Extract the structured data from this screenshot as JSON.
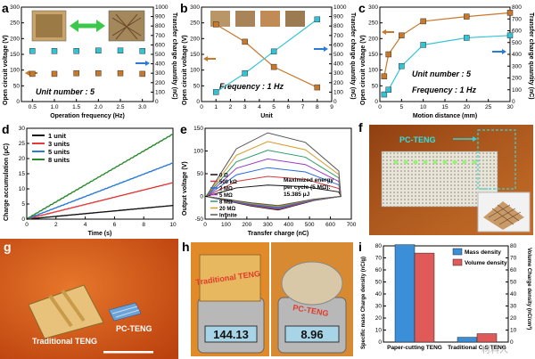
{
  "chart_data": [
    {
      "panel": "a",
      "type": "scatter",
      "xlabel": "Operation frequency (Hz)",
      "ylabel": "Open circuit voltage (V)",
      "y2label": "Transfer charge quantity (nC)",
      "xlim": [
        0.25,
        3.25
      ],
      "ylim": [
        0,
        300
      ],
      "y2lim": [
        0,
        1000
      ],
      "xticks": [
        "0.5",
        "1.0",
        "1.5",
        "2.0",
        "2.5",
        "3.0"
      ],
      "yticks": [
        "0",
        "50",
        "100",
        "150",
        "200",
        "250",
        "300"
      ],
      "y2ticks": [
        "0",
        "100",
        "200",
        "300",
        "400",
        "500",
        "600",
        "700",
        "800",
        "900",
        "1000"
      ],
      "annotation": "Unit number : 5",
      "series": [
        {
          "axis": "left",
          "color": "#c8782a",
          "x": [
            0.5,
            1.0,
            1.5,
            2.0,
            2.5,
            3.0
          ],
          "y": [
            88,
            88,
            90,
            90,
            90,
            88
          ]
        },
        {
          "axis": "right",
          "color": "#33c3d6",
          "x": [
            0.5,
            1.0,
            1.5,
            2.0,
            2.5,
            3.0
          ],
          "y": [
            535,
            535,
            535,
            540,
            540,
            535
          ]
        }
      ]
    },
    {
      "panel": "b",
      "type": "line",
      "xlabel": "Unit",
      "ylabel": "Open circuit voltage (V)",
      "y2label": "Transfer charge quantity (nC)",
      "xlim": [
        0,
        9
      ],
      "ylim": [
        0,
        300
      ],
      "y2lim": [
        0,
        1000
      ],
      "xticks": [
        "0",
        "1",
        "2",
        "3",
        "4",
        "5",
        "6",
        "7",
        "8",
        "9"
      ],
      "yticks": [
        "0",
        "50",
        "100",
        "150",
        "200",
        "250",
        "300"
      ],
      "y2ticks": [
        "0",
        "100",
        "200",
        "300",
        "400",
        "500",
        "600",
        "700",
        "800",
        "900",
        "1000"
      ],
      "annotation": "Frequency : 1 Hz",
      "series": [
        {
          "axis": "left",
          "color": "#c8782a",
          "x": [
            1,
            3,
            5,
            8
          ],
          "y": [
            245,
            190,
            110,
            45
          ]
        },
        {
          "axis": "right",
          "color": "#33c3d6",
          "x": [
            1,
            3,
            5,
            8
          ],
          "y": [
            100,
            300,
            530,
            870
          ]
        }
      ]
    },
    {
      "panel": "c",
      "type": "line",
      "xlabel": "Motion distance (mm)",
      "ylabel": "Open circuit voltage (V)",
      "y2label": "Transfer charge quantity (nC)",
      "xlim": [
        0,
        30
      ],
      "ylim": [
        0,
        300
      ],
      "y2lim": [
        0,
        800
      ],
      "xticks": [
        "0",
        "5",
        "10",
        "15",
        "20",
        "25",
        "30"
      ],
      "yticks": [
        "0",
        "50",
        "100",
        "150",
        "200",
        "250",
        "300"
      ],
      "y2ticks": [
        "0",
        "100",
        "200",
        "300",
        "400",
        "500",
        "600",
        "700",
        "800"
      ],
      "annotation": [
        "Unit number : 5",
        "Frequency : 1 Hz"
      ],
      "series": [
        {
          "axis": "left",
          "color": "#c8782a",
          "x": [
            1,
            2,
            5,
            10,
            20,
            30
          ],
          "y": [
            80,
            150,
            210,
            255,
            270,
            282
          ]
        },
        {
          "axis": "right",
          "color": "#33c3d6",
          "x": [
            1,
            2,
            5,
            10,
            20,
            30
          ],
          "y": [
            60,
            100,
            300,
            480,
            540,
            560
          ]
        }
      ]
    },
    {
      "panel": "d",
      "type": "line",
      "xlabel": "Time (s)",
      "ylabel": "Charge accumulation (μC)",
      "xlim": [
        0,
        10
      ],
      "ylim": [
        0,
        30
      ],
      "xticks": [
        "0",
        "2",
        "4",
        "6",
        "8",
        "10"
      ],
      "yticks": [
        "0",
        "5",
        "10",
        "15",
        "20",
        "25",
        "30"
      ],
      "legend_position": "top-left",
      "series": [
        {
          "name": "1 unit",
          "color": "#111111",
          "x": [
            0,
            10
          ],
          "y": [
            0,
            4.5
          ]
        },
        {
          "name": "3 units",
          "color": "#e23a3a",
          "x": [
            0,
            10
          ],
          "y": [
            0,
            12
          ]
        },
        {
          "name": "5 units",
          "color": "#2a7ad8",
          "x": [
            0,
            10
          ],
          "y": [
            0,
            18.5
          ]
        },
        {
          "name": "8 units",
          "color": "#2a8a2a",
          "x": [
            0,
            10
          ],
          "y": [
            0,
            28
          ]
        }
      ]
    },
    {
      "panel": "e",
      "type": "line",
      "xlabel": "Transfer charge (nC)",
      "ylabel": "Output voltage (V)",
      "xlim": [
        0,
        700
      ],
      "ylim": [
        -50,
        150
      ],
      "xticks": [
        "0",
        "100",
        "200",
        "300",
        "400",
        "500",
        "600",
        "700"
      ],
      "yticks": [
        "-50",
        "0",
        "50",
        "100",
        "150"
      ],
      "annotation": [
        "Maximized energy",
        "per cycle (5 MΩ):",
        "15.385 μJ"
      ],
      "legend_position": "bottom-left",
      "series": [
        {
          "name": "0 Ω",
          "color": "#111111"
        },
        {
          "name": "500 kΩ",
          "color": "#d23a3a"
        },
        {
          "name": "2 MΩ",
          "color": "#2a6ad8"
        },
        {
          "name": "5 MΩ",
          "color": "#9a3ac8"
        },
        {
          "name": "8 MΩ",
          "color": "#2a9a6a"
        },
        {
          "name": "20 MΩ",
          "color": "#d89a2a"
        },
        {
          "name": "Infinite",
          "color": "#555555"
        }
      ]
    },
    {
      "panel": "i",
      "type": "bar",
      "categories": [
        "Paper-cutting TENG",
        "Traditional C-S TENG"
      ],
      "ylabel": "Specific mass Charge density (nC/g)",
      "y2label": "Volume Charge density (nC/cm³)",
      "ylim": [
        0,
        80
      ],
      "y2lim": [
        0,
        80
      ],
      "yticks": [
        "0",
        "10",
        "20",
        "30",
        "40",
        "50",
        "60",
        "70",
        "80"
      ],
      "y2ticks": [
        "0",
        "10",
        "20",
        "30",
        "40",
        "50",
        "60",
        "70",
        "80"
      ],
      "legend_position": "top-right",
      "series": [
        {
          "name": "Mass density",
          "color": "#3b8fd8",
          "values": [
            81,
            4
          ]
        },
        {
          "name": "Volume density",
          "color": "#e05a5a",
          "values": [
            74,
            7
          ]
        }
      ]
    }
  ],
  "photos": {
    "f_label": "PC-TENG",
    "g_traditional": "Traditional TENG",
    "g_pc": "PC-TENG",
    "h_traditional": "Traditional TENG",
    "h_pc": "PC-TENG",
    "h_scale1": "144.13",
    "h_scale2": "8.96"
  },
  "panel_letters": [
    "a",
    "b",
    "c",
    "d",
    "e",
    "f",
    "g",
    "h",
    "i"
  ],
  "watermark": "材料人"
}
